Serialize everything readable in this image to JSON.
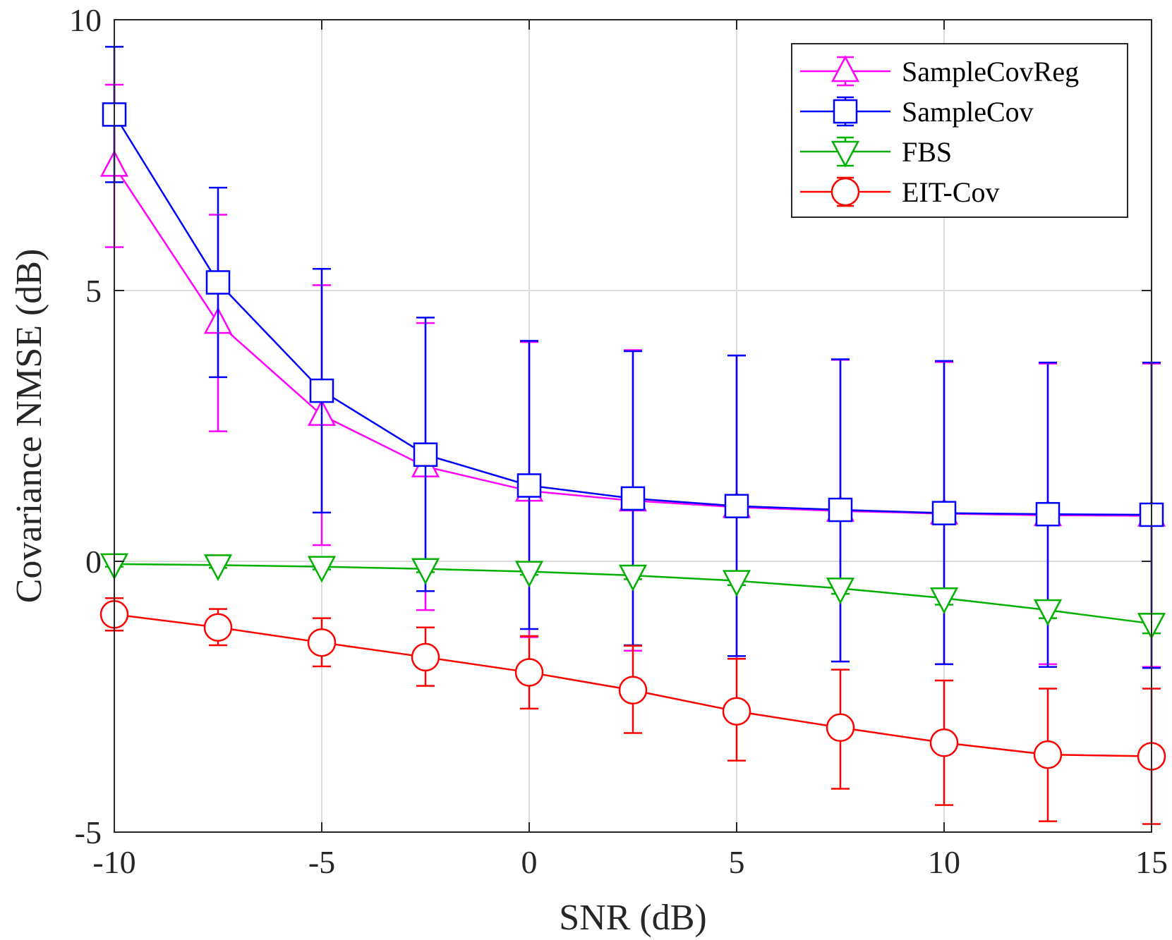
{
  "chart_data": {
    "type": "line",
    "title": "",
    "xlabel": "SNR (dB)",
    "ylabel": "Covariance NMSE (dB)",
    "xlim": [
      -10,
      15
    ],
    "ylim": [
      -5,
      10
    ],
    "grid": true,
    "legend_position": "top-right",
    "x_ticks": [
      -10,
      -5,
      0,
      5,
      10,
      15
    ],
    "x_tick_labels": [
      "-10",
      "-5",
      "0",
      "5",
      "10",
      "15"
    ],
    "y_ticks": [
      -5,
      0,
      5,
      10
    ],
    "y_tick_labels": [
      "-5",
      "0",
      "5",
      "10"
    ],
    "x": [
      -10,
      -7.5,
      -5,
      -2.5,
      0,
      2.5,
      5,
      7.5,
      10,
      12.5,
      15
    ],
    "series": [
      {
        "name": "SampleCovReg",
        "color": "#ff00ff",
        "marker": "triangle-up",
        "values": [
          7.3,
          4.4,
          2.7,
          1.75,
          1.3,
          1.12,
          1.0,
          0.93,
          0.88,
          0.85,
          0.84
        ],
        "err_low": [
          5.8,
          2.4,
          0.3,
          -0.9,
          -1.4,
          -1.65,
          -1.8,
          -1.85,
          -1.9,
          -1.9,
          -1.95
        ],
        "err_high": [
          8.8,
          6.4,
          5.1,
          4.4,
          4.05,
          3.9,
          3.8,
          3.72,
          3.68,
          3.65,
          3.65
        ]
      },
      {
        "name": "SampleCov",
        "color": "#0000ff",
        "marker": "square",
        "values": [
          8.25,
          5.15,
          3.15,
          1.97,
          1.4,
          1.16,
          1.02,
          0.95,
          0.89,
          0.87,
          0.86
        ],
        "err_low": [
          7.0,
          3.4,
          0.9,
          -0.55,
          -1.25,
          -1.55,
          -1.75,
          -1.85,
          -1.9,
          -1.95,
          -1.97
        ],
        "err_high": [
          9.5,
          6.9,
          5.4,
          4.5,
          4.07,
          3.88,
          3.8,
          3.73,
          3.7,
          3.67,
          3.67
        ]
      },
      {
        "name": "FBS",
        "color": "#00b000",
        "marker": "triangle-down",
        "values": [
          -0.05,
          -0.07,
          -0.1,
          -0.14,
          -0.19,
          -0.26,
          -0.36,
          -0.5,
          -0.68,
          -0.9,
          -1.15
        ],
        "err_low": [
          -0.1,
          -0.12,
          -0.15,
          -0.2,
          -0.25,
          -0.33,
          -0.44,
          -0.6,
          -0.8,
          -1.05,
          -1.33
        ],
        "err_high": [
          0.0,
          -0.02,
          -0.05,
          -0.08,
          -0.13,
          -0.19,
          -0.28,
          -0.4,
          -0.56,
          -0.75,
          -0.97
        ]
      },
      {
        "name": "EIT-Cov",
        "color": "#ff0000",
        "marker": "circle",
        "values": [
          -0.98,
          -1.22,
          -1.5,
          -1.77,
          -2.05,
          -2.38,
          -2.77,
          -3.07,
          -3.35,
          -3.57,
          -3.6
        ],
        "err_low": [
          -1.28,
          -1.55,
          -1.94,
          -2.3,
          -2.72,
          -3.17,
          -3.68,
          -4.2,
          -4.5,
          -4.8,
          -4.85
        ],
        "err_high": [
          -0.68,
          -0.88,
          -1.05,
          -1.22,
          -1.38,
          -1.56,
          -1.8,
          -2.0,
          -2.2,
          -2.35,
          -2.35
        ]
      }
    ]
  }
}
